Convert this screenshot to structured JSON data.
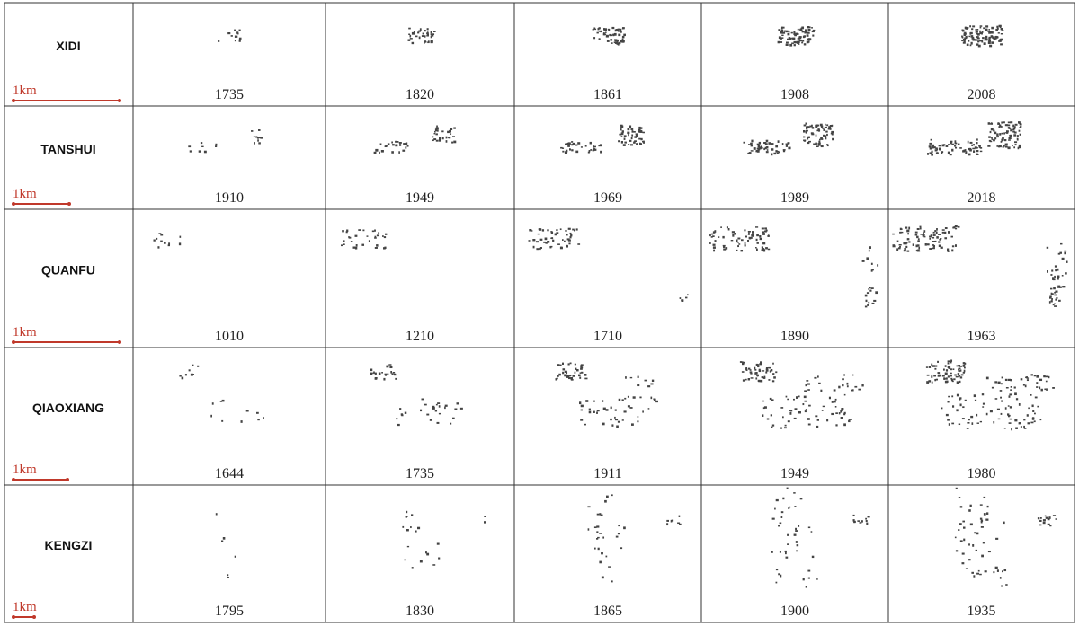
{
  "rows": [
    {
      "name": "XIDI",
      "scale": "1km",
      "years": [
        "1735",
        "1820",
        "1861",
        "1908",
        "2008"
      ]
    },
    {
      "name": "TANSHUI",
      "scale": "1km",
      "years": [
        "1910",
        "1949",
        "1969",
        "1989",
        "2018"
      ]
    },
    {
      "name": "QUANFU",
      "scale": "1km",
      "years": [
        "1010",
        "1210",
        "1710",
        "1890",
        "1963"
      ]
    },
    {
      "name": "QIAOXIANG",
      "scale": "1km",
      "years": [
        "1644",
        "1735",
        "1911",
        "1949",
        "1980"
      ]
    },
    {
      "name": "KENGZI",
      "scale": "1km",
      "years": [
        "1795",
        "1830",
        "1865",
        "1900",
        "1935"
      ]
    }
  ]
}
